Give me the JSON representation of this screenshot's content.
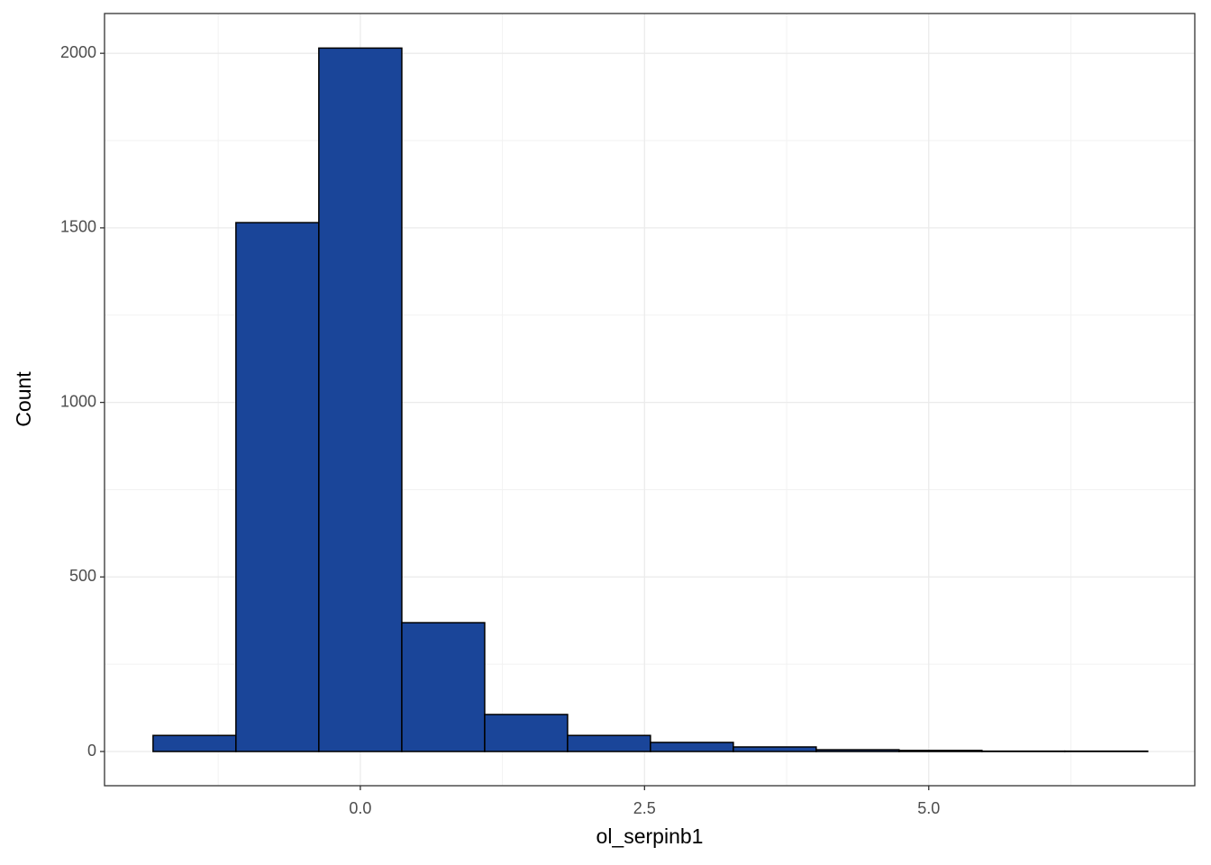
{
  "chart_data": {
    "type": "histogram",
    "x_label": "ol_serpinb1",
    "y_label": "Count",
    "bins": [
      -1.823,
      -1.094,
      -0.365,
      0.365,
      1.094,
      1.823,
      2.552,
      3.281,
      4.01,
      4.739,
      5.468,
      6.197,
      6.926
    ],
    "values": [
      46,
      1515,
      2015,
      369,
      106,
      46,
      26,
      13,
      5,
      3,
      1,
      1
    ],
    "color": "#1a4599",
    "edge_color": "#000000",
    "xlim": [
      -2.25,
      7.34
    ],
    "ylim": [
      -98,
      2114
    ],
    "xticks": [
      {
        "value": 0,
        "label": "0.0"
      },
      {
        "value": 2.5,
        "label": "2.5"
      },
      {
        "value": 5,
        "label": "5.0"
      }
    ],
    "yticks": [
      0,
      500,
      1000,
      1500,
      2000
    ],
    "grid": true
  }
}
